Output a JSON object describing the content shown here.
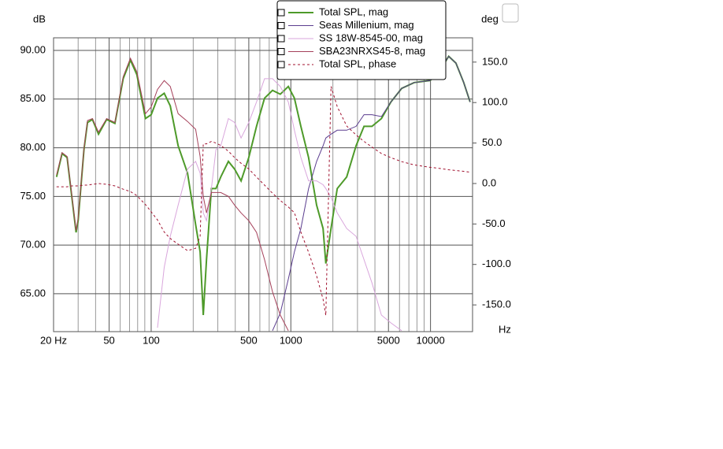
{
  "chart_data": {
    "type": "line",
    "y_label": "dB",
    "y2_label": "deg",
    "x_label": "Hz",
    "xscale": "log",
    "legend": "top",
    "grid": true,
    "x": [
      21,
      23,
      25,
      27,
      29,
      30,
      33,
      35,
      38,
      42,
      48,
      55,
      63,
      71,
      79,
      91,
      100,
      111,
      124,
      137,
      156,
      182,
      208,
      224,
      236,
      249,
      270,
      291,
      315,
      357,
      396,
      440,
      500,
      568,
      648,
      739,
      841,
      960,
      1060,
      1180,
      1340,
      1530,
      1700,
      1780,
      1940,
      2150,
      2510,
      2930,
      3340,
      3810,
      4450,
      5200,
      6220,
      7640,
      9900,
      11200,
      13500,
      15200,
      17300,
      19200
    ],
    "xlim": [
      20,
      20000
    ],
    "xticks": [
      {
        "value": 20,
        "label": "20 Hz"
      },
      50,
      100,
      500,
      1000,
      5000,
      10000
    ],
    "x_minor_grid": [
      30,
      40,
      60,
      70,
      80,
      90,
      200,
      300,
      400,
      600,
      700,
      800,
      900,
      2000,
      3000,
      4000,
      6000,
      7000,
      8000,
      9000
    ],
    "ylim": [
      61.1,
      91.3
    ],
    "yticks": [
      {
        "value": 65,
        "label": "65.00"
      },
      {
        "value": 70,
        "label": "70.00"
      },
      {
        "value": 75,
        "label": "75.00"
      },
      {
        "value": 80,
        "label": "80.00"
      },
      {
        "value": 85,
        "label": "85.00"
      },
      {
        "value": 90,
        "label": "90.00"
      }
    ],
    "y2lim": [
      -183,
      180
    ],
    "y2ticks": [
      {
        "value": -150,
        "label": "-150.0"
      },
      {
        "value": -100,
        "label": "-100.0"
      },
      {
        "value": -50,
        "label": "-50.0"
      },
      {
        "value": 0,
        "label": "0.0"
      },
      {
        "value": 50,
        "label": "50.0"
      },
      {
        "value": 100,
        "label": "100.0"
      },
      {
        "value": 150,
        "label": "150.0"
      }
    ],
    "series": [
      {
        "name": "Total SPL, mag",
        "color": "#4e9a2a",
        "values": [
          77.0,
          79.4,
          79.0,
          75.0,
          71.3,
          72.5,
          79.8,
          82.6,
          82.9,
          81.4,
          82.9,
          82.5,
          87.1,
          89.0,
          87.5,
          83.0,
          83.4,
          85.1,
          85.6,
          84.3,
          80.2,
          77.4,
          72.1,
          69.3,
          62.8,
          68.5,
          75.8,
          75.8,
          77.0,
          78.6,
          77.8,
          76.6,
          79.0,
          82.2,
          85.1,
          85.9,
          85.5,
          86.3,
          85.1,
          82.2,
          79.0,
          74.1,
          71.7,
          68.1,
          71.7,
          75.8,
          77.0,
          80.2,
          82.2,
          82.2,
          83.0,
          84.7,
          86.1,
          86.7,
          86.9,
          87.5,
          89.4,
          88.7,
          86.7,
          84.7
        ]
      },
      {
        "name": "Seas Millenium, mag",
        "color": "#5b3d8f",
        "values": [
          null,
          null,
          null,
          null,
          null,
          null,
          null,
          null,
          null,
          null,
          null,
          null,
          null,
          null,
          null,
          null,
          null,
          null,
          null,
          null,
          null,
          null,
          null,
          null,
          null,
          null,
          null,
          null,
          null,
          null,
          null,
          null,
          null,
          null,
          null,
          61.2,
          63.0,
          66.5,
          69.3,
          71.7,
          75.8,
          78.6,
          80.2,
          81.0,
          81.4,
          81.8,
          81.8,
          82.2,
          83.4,
          83.4,
          83.2,
          84.7,
          86.1,
          86.7,
          86.9,
          87.5,
          89.4,
          88.7,
          86.7,
          84.7
        ]
      },
      {
        "name": "SS 18W-8545-00, mag",
        "color": "#d9a6dc",
        "values": [
          null,
          null,
          null,
          null,
          null,
          null,
          null,
          null,
          null,
          null,
          null,
          null,
          null,
          null,
          null,
          null,
          null,
          61.5,
          67.7,
          70.9,
          74.1,
          77.8,
          78.6,
          77.4,
          73.3,
          72.5,
          75.8,
          79.8,
          80.2,
          83.0,
          82.6,
          81.0,
          82.6,
          84.7,
          87.1,
          87.1,
          86.3,
          84.7,
          81.8,
          79.0,
          76.6,
          76.6,
          76.2,
          75.8,
          74.9,
          73.3,
          71.7,
          70.9,
          68.5,
          66.1,
          62.8,
          62.0,
          61.2,
          null,
          null,
          null,
          null,
          null,
          null,
          null
        ]
      },
      {
        "name": "SBA23NRXS45-8, mag",
        "color": "#a5405a",
        "values": [
          77.2,
          79.5,
          79.1,
          75.2,
          71.5,
          72.7,
          79.9,
          82.8,
          83.0,
          81.6,
          83.0,
          82.6,
          87.3,
          89.2,
          87.8,
          83.5,
          84.2,
          86.0,
          86.9,
          86.3,
          83.5,
          82.7,
          81.9,
          79.1,
          75.0,
          73.3,
          75.4,
          75.4,
          75.4,
          75.0,
          74.1,
          73.3,
          72.5,
          71.3,
          68.5,
          65.2,
          62.8,
          61.2,
          null,
          null,
          null,
          null,
          null,
          null,
          null,
          null,
          null,
          null,
          null,
          null,
          null,
          null,
          null,
          null,
          null,
          null,
          null,
          null,
          null,
          null
        ]
      },
      {
        "name": "Total SPL, phase",
        "color": "#a0102e",
        "axis": "y2",
        "dashed": true,
        "values": [
          -4,
          -4,
          -4,
          -3,
          -3,
          -3,
          -2,
          -2,
          -1,
          0,
          -1,
          -3,
          -7,
          -10,
          -15,
          -26,
          -35,
          -45,
          -60,
          -68,
          -75,
          -83,
          -80,
          -65,
          49,
          49,
          52,
          50,
          47,
          40,
          32,
          25,
          18,
          8,
          -2,
          -12,
          -21,
          -29,
          -36,
          -60,
          -85,
          -114,
          -143,
          -163,
          120,
          95,
          71,
          60,
          52,
          45,
          37,
          32,
          27,
          23,
          20,
          19,
          17,
          16,
          15,
          14
        ]
      }
    ]
  }
}
